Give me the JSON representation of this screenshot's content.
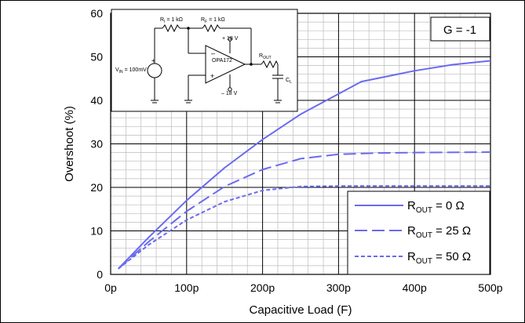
{
  "chart_data": {
    "type": "line",
    "title": "",
    "xlabel": "Capacitive Load (F)",
    "ylabel": "Overshoot (%)",
    "xlim": [
      0,
      500
    ],
    "ylim": [
      0,
      60
    ],
    "x_tick_labels": [
      "0p",
      "100p",
      "200p",
      "300p",
      "400p",
      "500p"
    ],
    "y_tick_labels": [
      "0",
      "10",
      "20",
      "30",
      "40",
      "50",
      "60"
    ],
    "grid": true,
    "gain_label": "G = -1",
    "legend_position": "bottom-right",
    "series": [
      {
        "name_main": "R",
        "name_sub": "OUT",
        "name_tail": " = 0 Ω",
        "color": "#6a6af0",
        "dash": "solid",
        "x": [
          10,
          50,
          100,
          150,
          200,
          250,
          300,
          330,
          400,
          450,
          500
        ],
        "y": [
          1.3,
          8.5,
          17,
          24.5,
          31,
          36.8,
          41.5,
          44.3,
          46.8,
          48.2,
          49.1
        ]
      },
      {
        "name_main": "R",
        "name_sub": "OUT",
        "name_tail": " = 25 Ω",
        "color": "#6a6af0",
        "dash": "long",
        "x": [
          10,
          50,
          100,
          150,
          200,
          250,
          300,
          350,
          400,
          500
        ],
        "y": [
          1.3,
          7.5,
          14.5,
          20.2,
          24.1,
          26.6,
          27.6,
          27.9,
          28.0,
          28.1
        ]
      },
      {
        "name_main": "R",
        "name_sub": "OUT",
        "name_tail": " = 50 Ω",
        "color": "#6a6af0",
        "dash": "short",
        "x": [
          10,
          50,
          100,
          150,
          200,
          250,
          300,
          350,
          400,
          500
        ],
        "y": [
          1.3,
          6.8,
          12.5,
          16.7,
          19.3,
          20.2,
          20.3,
          20.3,
          20.3,
          20.3
        ]
      }
    ]
  },
  "schematic": {
    "ri_label": "R",
    "ri_sub": "I",
    "ri_value": " = 1 kΩ",
    "rf_label": "R",
    "rf_sub": "F",
    "rf_value": " = 1 kΩ",
    "vplus": "+ 18 V",
    "vminus": "– 18 V",
    "opamp_name": "OPA172",
    "rout_label": "R",
    "rout_sub": "OUT",
    "cl_label": "C",
    "cl_sub": "L",
    "vin_label": "V",
    "vin_sub": "IN",
    "vin_value": " = 100mV",
    "plus_sign": "+",
    "minus_sign": "–"
  }
}
